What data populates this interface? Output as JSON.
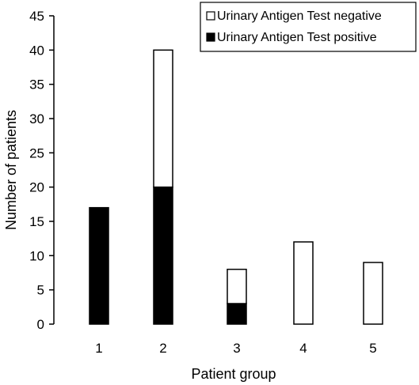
{
  "chart_data": {
    "type": "bar",
    "stacked": true,
    "categories": [
      "1",
      "2",
      "3",
      "4",
      "5"
    ],
    "series": [
      {
        "name": "Urinary Antigen Test positive",
        "color": "#000000",
        "values": [
          17,
          20,
          3,
          0,
          0
        ]
      },
      {
        "name": "Urinary Antigen Test negative",
        "color": "#ffffff",
        "values": [
          0,
          20,
          5,
          12,
          9
        ]
      }
    ],
    "xlabel": "Patient group",
    "ylabel": "Number of patients",
    "ylim": [
      0,
      45
    ],
    "yticks": [
      "0",
      "5",
      "10",
      "15",
      "20",
      "25",
      "30",
      "35",
      "40",
      "45"
    ],
    "grid": false,
    "legend_position": "top-right"
  }
}
